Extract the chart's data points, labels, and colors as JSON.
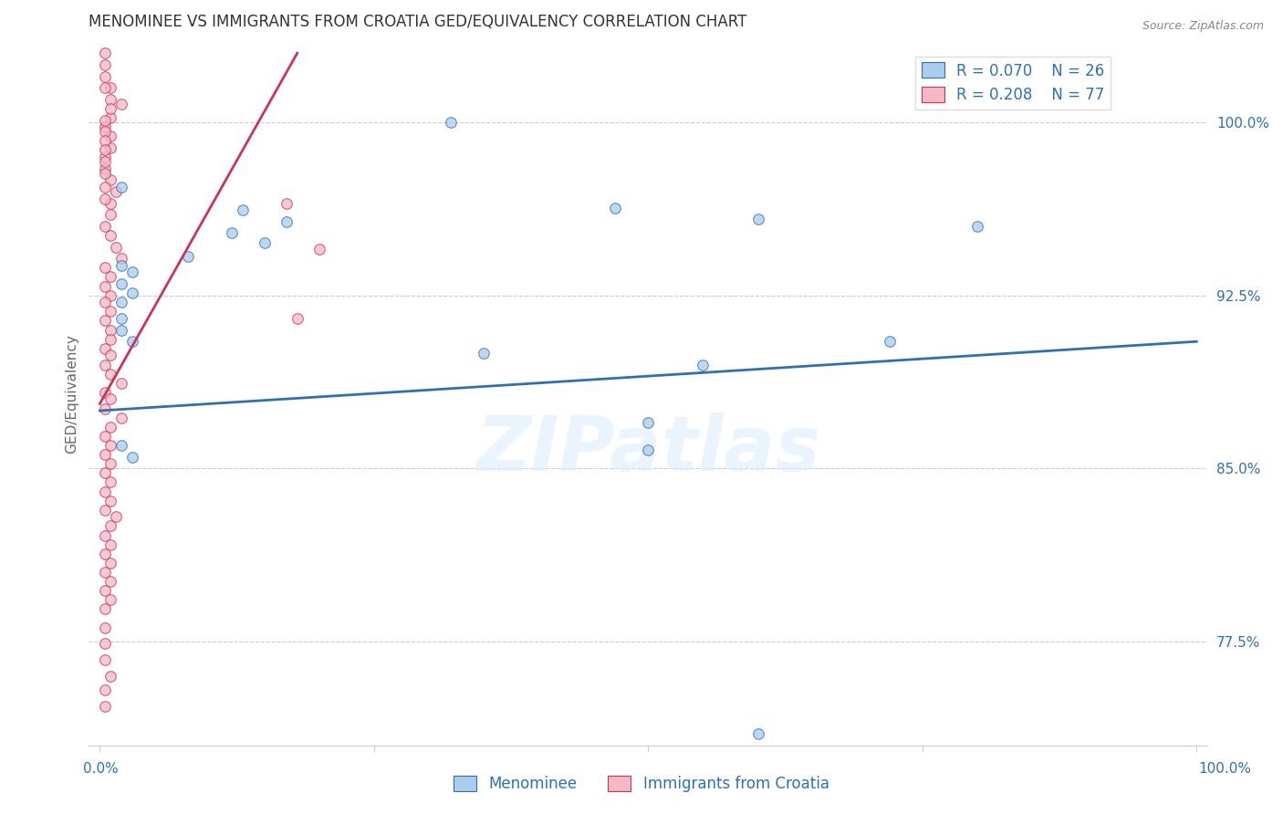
{
  "title": "MENOMINEE VS IMMIGRANTS FROM CROATIA GED/EQUIVALENCY CORRELATION CHART",
  "source": "Source: ZipAtlas.com",
  "ylabel": "GED/Equivalency",
  "watermark": "ZIPatlas",
  "legend": {
    "blue_R": "R = 0.070",
    "blue_N": "N = 26",
    "pink_R": "R = 0.208",
    "pink_N": "N = 77"
  },
  "yticks": [
    77.5,
    85.0,
    92.5,
    100.0
  ],
  "ylim": [
    73.0,
    103.5
  ],
  "xlim": [
    -0.01,
    1.01
  ],
  "blue_scatter": [
    [
      0.32,
      100.0
    ],
    [
      0.02,
      97.2
    ],
    [
      0.13,
      96.2
    ],
    [
      0.17,
      95.7
    ],
    [
      0.12,
      95.2
    ],
    [
      0.15,
      94.8
    ],
    [
      0.08,
      94.2
    ],
    [
      0.02,
      93.8
    ],
    [
      0.03,
      93.5
    ],
    [
      0.02,
      93.0
    ],
    [
      0.03,
      92.6
    ],
    [
      0.02,
      92.2
    ],
    [
      0.02,
      91.5
    ],
    [
      0.02,
      91.0
    ],
    [
      0.03,
      90.5
    ],
    [
      0.35,
      90.0
    ],
    [
      0.47,
      96.3
    ],
    [
      0.6,
      95.8
    ],
    [
      0.8,
      95.5
    ],
    [
      0.72,
      90.5
    ],
    [
      0.55,
      89.5
    ],
    [
      0.5,
      87.0
    ],
    [
      0.5,
      85.8
    ],
    [
      0.02,
      86.0
    ],
    [
      0.03,
      85.5
    ],
    [
      0.6,
      73.5
    ]
  ],
  "pink_scatter": [
    [
      0.01,
      101.5
    ],
    [
      0.02,
      100.8
    ],
    [
      0.01,
      100.2
    ],
    [
      0.005,
      99.8
    ],
    [
      0.01,
      99.4
    ],
    [
      0.01,
      98.9
    ],
    [
      0.005,
      98.5
    ],
    [
      0.005,
      98.0
    ],
    [
      0.01,
      97.5
    ],
    [
      0.015,
      97.0
    ],
    [
      0.01,
      96.5
    ],
    [
      0.01,
      96.0
    ],
    [
      0.005,
      95.5
    ],
    [
      0.01,
      95.1
    ],
    [
      0.015,
      94.6
    ],
    [
      0.02,
      94.1
    ],
    [
      0.005,
      93.7
    ],
    [
      0.01,
      93.3
    ],
    [
      0.005,
      92.9
    ],
    [
      0.01,
      92.5
    ],
    [
      0.005,
      92.2
    ],
    [
      0.01,
      91.8
    ],
    [
      0.005,
      91.4
    ],
    [
      0.01,
      91.0
    ],
    [
      0.01,
      90.6
    ],
    [
      0.005,
      90.2
    ],
    [
      0.01,
      89.9
    ],
    [
      0.005,
      89.5
    ],
    [
      0.01,
      89.1
    ],
    [
      0.02,
      88.7
    ],
    [
      0.005,
      88.3
    ],
    [
      0.01,
      88.0
    ],
    [
      0.005,
      87.6
    ],
    [
      0.02,
      87.2
    ],
    [
      0.01,
      86.8
    ],
    [
      0.005,
      86.4
    ],
    [
      0.01,
      86.0
    ],
    [
      0.005,
      85.6
    ],
    [
      0.01,
      85.2
    ],
    [
      0.005,
      84.8
    ],
    [
      0.01,
      84.4
    ],
    [
      0.005,
      84.0
    ],
    [
      0.01,
      83.6
    ],
    [
      0.005,
      83.2
    ],
    [
      0.015,
      82.9
    ],
    [
      0.01,
      82.5
    ],
    [
      0.005,
      82.1
    ],
    [
      0.01,
      81.7
    ],
    [
      0.005,
      81.3
    ],
    [
      0.01,
      80.9
    ],
    [
      0.005,
      80.5
    ],
    [
      0.01,
      80.1
    ],
    [
      0.005,
      79.7
    ],
    [
      0.01,
      79.3
    ],
    [
      0.005,
      78.9
    ],
    [
      0.005,
      78.1
    ],
    [
      0.005,
      77.4
    ],
    [
      0.005,
      76.7
    ],
    [
      0.01,
      76.0
    ],
    [
      0.005,
      75.4
    ],
    [
      0.005,
      74.7
    ],
    [
      0.17,
      96.5
    ],
    [
      0.2,
      94.5
    ],
    [
      0.18,
      91.5
    ],
    [
      0.005,
      103.0
    ],
    [
      0.005,
      102.5
    ],
    [
      0.005,
      102.0
    ],
    [
      0.005,
      101.5
    ],
    [
      0.01,
      101.0
    ],
    [
      0.01,
      100.6
    ],
    [
      0.005,
      100.1
    ],
    [
      0.005,
      99.6
    ],
    [
      0.005,
      99.2
    ],
    [
      0.005,
      98.8
    ],
    [
      0.005,
      98.3
    ],
    [
      0.005,
      97.8
    ],
    [
      0.005,
      97.2
    ],
    [
      0.005,
      96.7
    ]
  ],
  "blue_line_x": [
    0.0,
    1.0
  ],
  "blue_line_y": [
    87.5,
    90.5
  ],
  "pink_line_x": [
    0.0,
    0.18
  ],
  "pink_line_y": [
    87.8,
    103.0
  ],
  "blue_color": "#aaccee",
  "pink_color": "#f5b8c8",
  "blue_line_color": "#3070b0",
  "pink_line_color": "#cc3355",
  "grid_color": "#cccccc",
  "background_color": "#ffffff",
  "title_fontsize": 12,
  "axis_label_fontsize": 11,
  "tick_fontsize": 11,
  "scatter_size": 70
}
